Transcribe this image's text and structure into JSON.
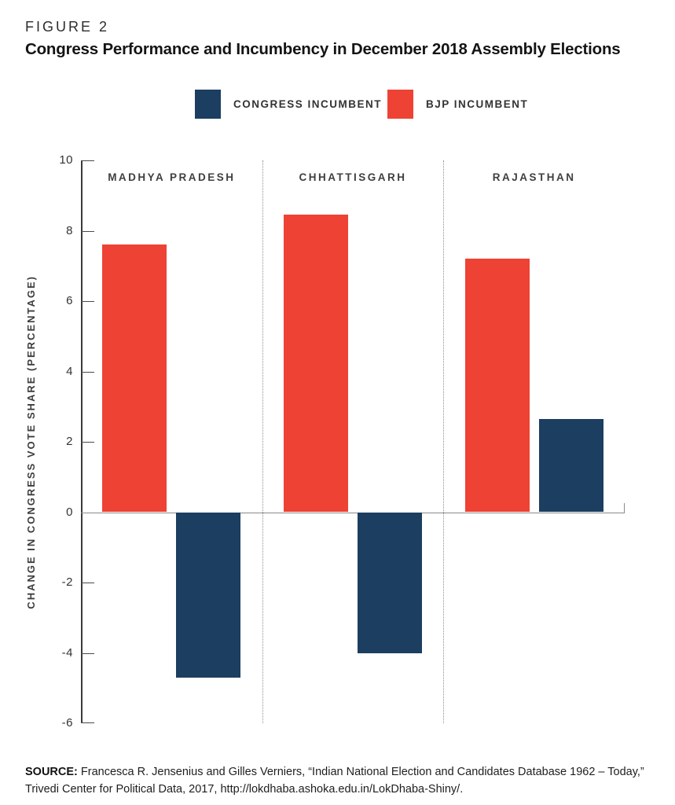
{
  "header": {
    "figure_label": "FIGURE 2",
    "title": "Congress Performance and Incumbency in December 2018 Assembly Elections"
  },
  "legend": {
    "items": [
      {
        "label": "CONGRESS INCUMBENT",
        "color": "#1c3e60"
      },
      {
        "label": "BJP INCUMBENT",
        "color": "#ee4234"
      }
    ]
  },
  "chart_data": {
    "type": "bar",
    "title": "Congress Performance and Incumbency in December 2018 Assembly Elections",
    "categories": [
      "MADHYA PRADESH",
      "CHHATTISGARH",
      "RAJASTHAN"
    ],
    "series": [
      {
        "name": "BJP INCUMBENT",
        "color": "#ee4234",
        "values": [
          7.6,
          8.45,
          7.2
        ]
      },
      {
        "name": "CONGRESS INCUMBENT",
        "color": "#1c3e60",
        "values": [
          -4.7,
          -4.0,
          2.65
        ]
      }
    ],
    "xlabel": "",
    "ylabel": "CHANGE IN CONGRESS VOTE SHARE (PERCENTAGE)",
    "ylim": [
      -6,
      10
    ],
    "yticks": [
      10,
      8,
      6,
      4,
      2,
      0,
      -2,
      -4,
      -6
    ],
    "grid": false,
    "legend_position": "top",
    "panel_separators": "dotted",
    "zero_baseline": true
  },
  "source": {
    "label": "SOURCE:",
    "lines": [
      "Francesca R. Jensenius and Gilles Verniers, “Indian National Election and Candidates Database 1962 – Today,”",
      "Trivedi Center for Political Data, 2017, http://lokdhaba.ashoka.edu.in/LokDhaba-Shiny/."
    ]
  }
}
